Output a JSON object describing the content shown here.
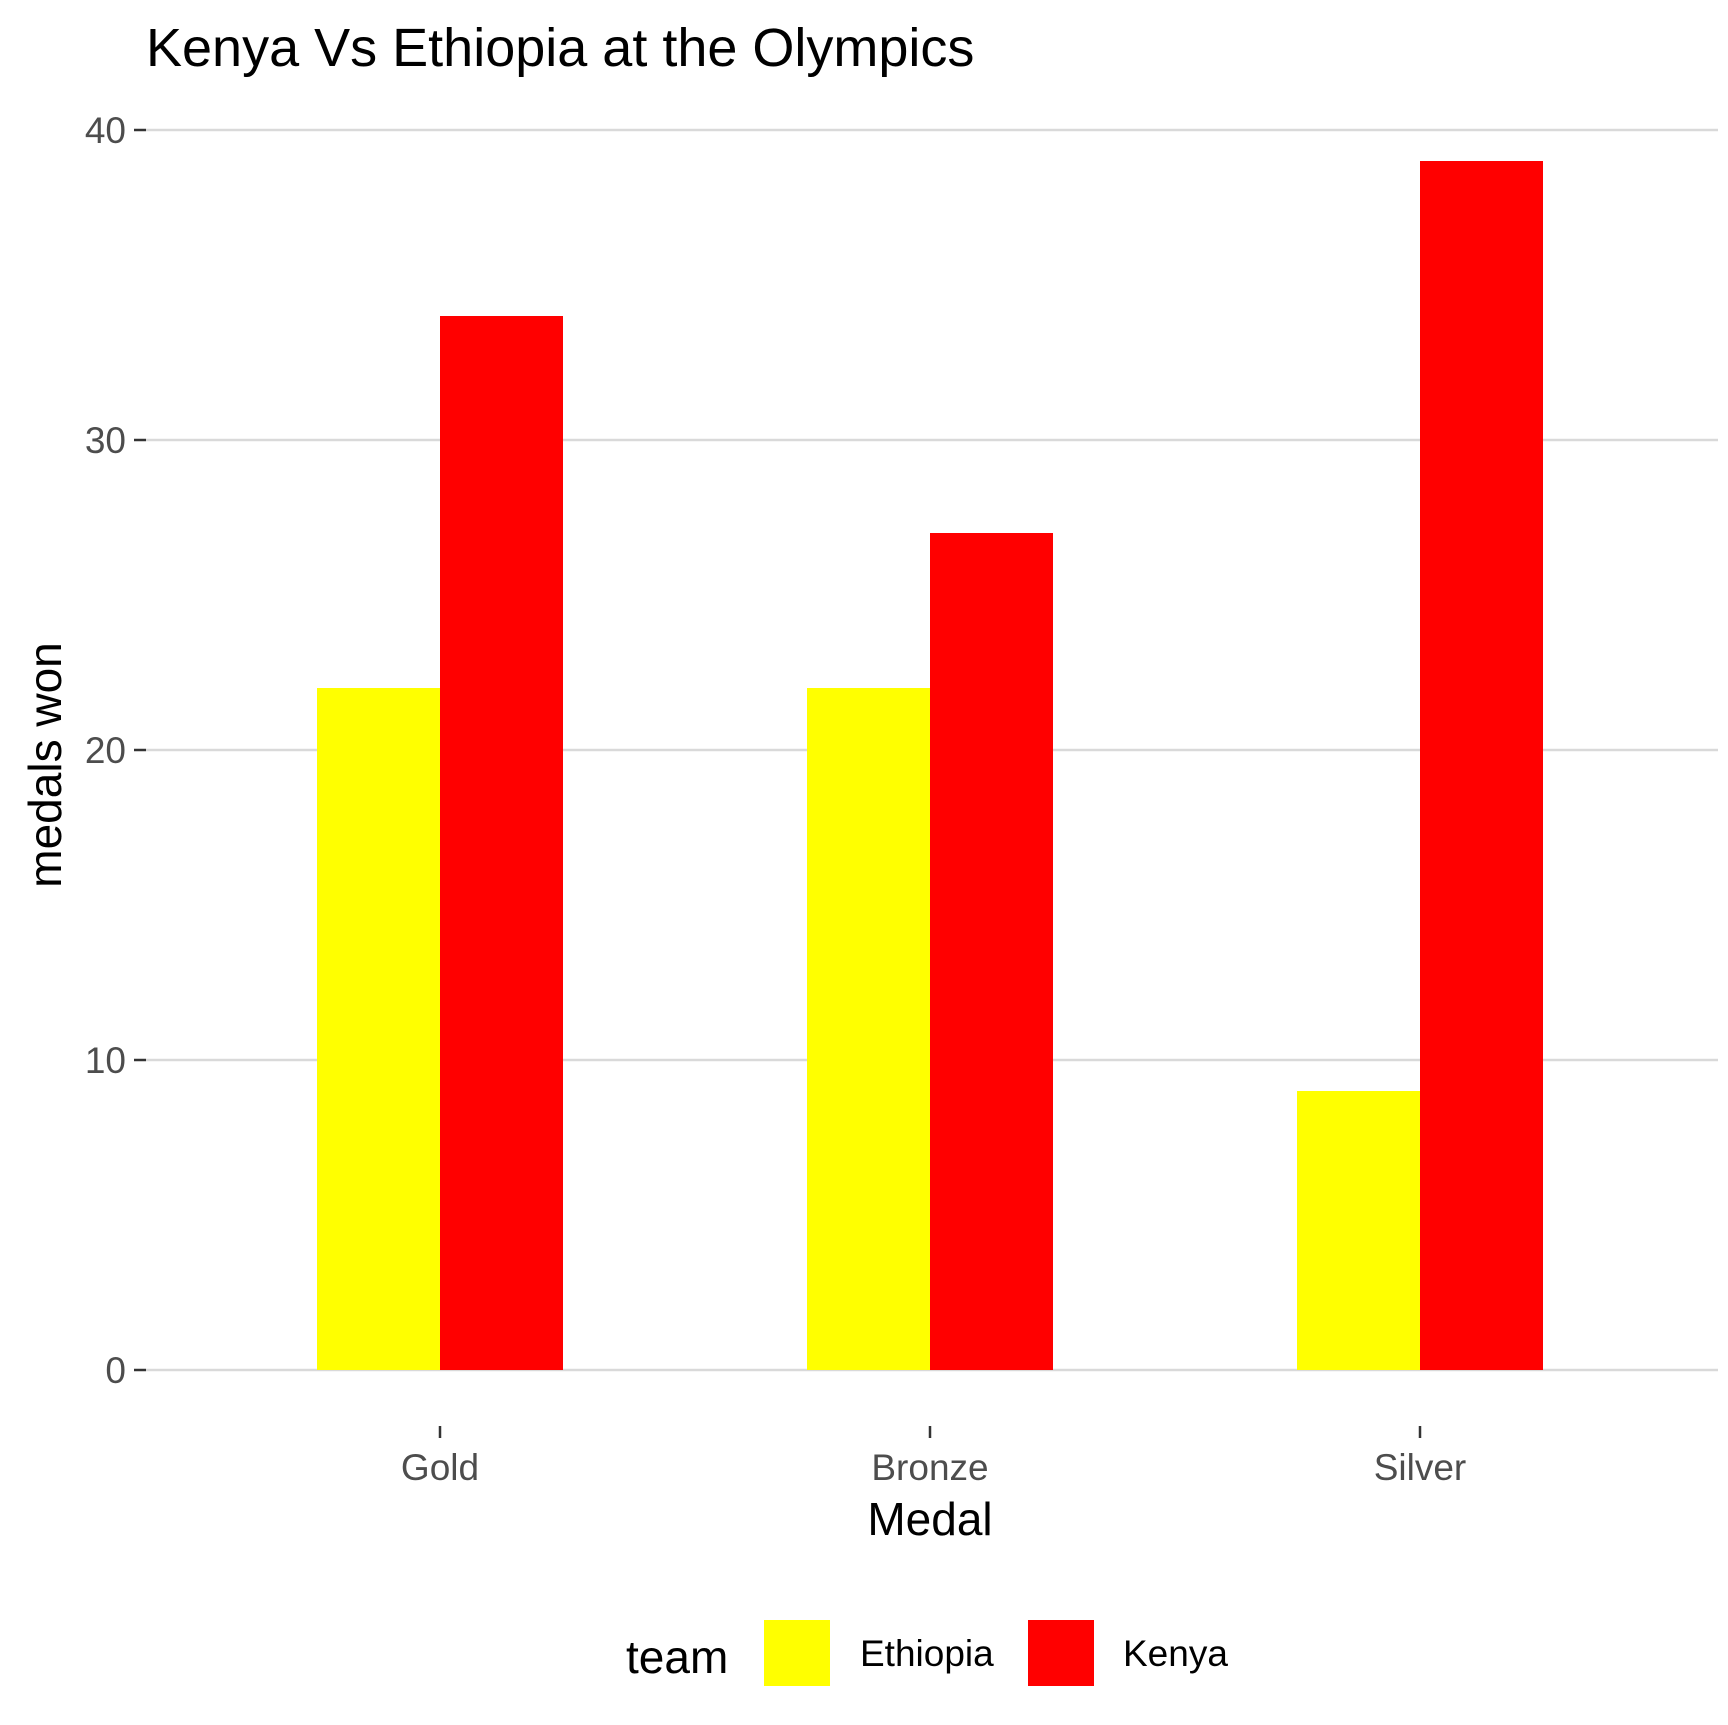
{
  "chart_data": {
    "type": "bar",
    "title": "Kenya Vs Ethiopia at the Olympics",
    "xlabel": "Medal",
    "ylabel": "medals won",
    "categories": [
      "Gold",
      "Bronze",
      "Silver"
    ],
    "series": [
      {
        "name": "Ethiopia",
        "color": "#ffff00",
        "values": [
          22,
          22,
          9
        ]
      },
      {
        "name": "Kenya",
        "color": "#ff0000",
        "values": [
          34,
          27,
          39
        ]
      }
    ],
    "ylim": [
      0,
      40
    ],
    "yticks": [
      0,
      10,
      20,
      30,
      40
    ],
    "grid": true,
    "legend": {
      "title": "team",
      "position": "bottom"
    }
  }
}
